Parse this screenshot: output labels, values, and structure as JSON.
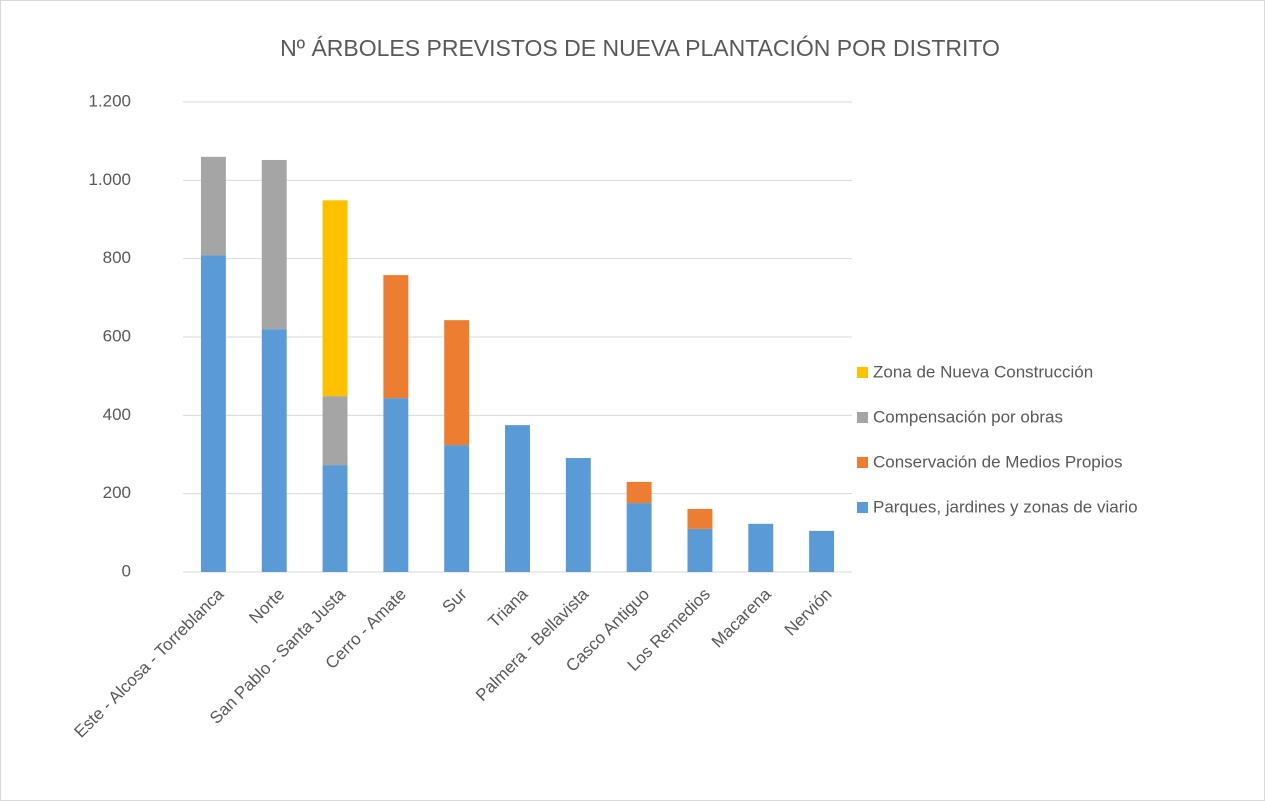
{
  "chart_data": {
    "type": "stacked_bar",
    "title": "Nº ÁRBOLES PREVISTOS DE NUEVA PLANTACIÓN POR DISTRITO",
    "categories": [
      "Este - Alcosa - Torreblanca",
      "Norte",
      "San Pablo - Santa Justa",
      "Cerro - Amate",
      "Sur",
      "Triana",
      "Palmera - Bellavista",
      "Casco Antiguo",
      "Los Remedios",
      "Macarena",
      "Nervión"
    ],
    "series": [
      {
        "name": "Parques, jardines y zonas de viario",
        "color": "#5b9bd5",
        "values": [
          808,
          620,
          273,
          444,
          324,
          375,
          291,
          176,
          110,
          123,
          105
        ]
      },
      {
        "name": "Conservación de Medios Propios",
        "color": "#ed7d31",
        "values": [
          null,
          null,
          null,
          314,
          319,
          null,
          null,
          54,
          51,
          null,
          null
        ]
      },
      {
        "name": "Compensación por obras",
        "color": "#a5a5a5",
        "values": [
          252,
          432,
          176,
          null,
          null,
          null,
          null,
          null,
          null,
          null,
          null
        ]
      },
      {
        "name": "Zona de Nueva Construcción",
        "color": "#ffc000",
        "values": [
          null,
          null,
          500,
          null,
          null,
          null,
          null,
          null,
          null,
          null,
          null
        ]
      }
    ],
    "ylim": [
      0,
      1200
    ],
    "yticks": [
      0,
      200,
      400,
      600,
      800,
      {
        "value": 1000,
        "label": "1.000"
      },
      {
        "value": 1200,
        "label": "1.200"
      }
    ],
    "grid": true,
    "legend": "right"
  }
}
